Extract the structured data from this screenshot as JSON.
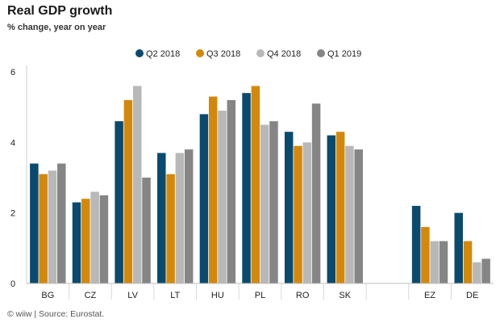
{
  "chart_data": {
    "type": "bar",
    "title": "Real GDP growth",
    "subtitle": "% change, year on year",
    "source": "© wiiw | Source: Eurostat.",
    "categories": [
      "BG",
      "CZ",
      "LV",
      "LT",
      "HU",
      "PL",
      "RO",
      "SK",
      "",
      "EZ",
      "DE"
    ],
    "series": [
      {
        "name": "Q2 2018",
        "color": "#0a4a6e",
        "values": [
          3.4,
          2.3,
          4.6,
          3.7,
          4.8,
          5.4,
          4.3,
          4.2,
          null,
          2.2,
          2.0
        ]
      },
      {
        "name": "Q3 2018",
        "color": "#d4880a",
        "values": [
          3.1,
          2.4,
          5.2,
          3.1,
          5.3,
          5.6,
          3.9,
          4.3,
          null,
          1.6,
          1.2
        ]
      },
      {
        "name": "Q4 2018",
        "color": "#b8b8b8",
        "values": [
          3.2,
          2.6,
          5.6,
          3.7,
          4.9,
          4.5,
          4.0,
          3.9,
          null,
          1.2,
          0.6
        ]
      },
      {
        "name": "Q1 2019",
        "color": "#858585",
        "values": [
          3.4,
          2.5,
          3.0,
          3.8,
          5.2,
          4.6,
          5.1,
          3.8,
          null,
          1.2,
          0.7
        ]
      }
    ],
    "yticks": [
      0,
      2,
      4,
      6
    ],
    "ylim": [
      0,
      6
    ],
    "grid": false,
    "legend_position": "top-center"
  }
}
